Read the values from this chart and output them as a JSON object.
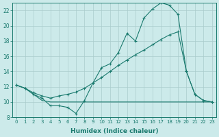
{
  "xlabel": "Humidex (Indice chaleur)",
  "background_color": "#cceaea",
  "line_color": "#1a7a6e",
  "grid_color": "#aacccc",
  "xlim": [
    -0.5,
    23.5
  ],
  "ylim": [
    8,
    23
  ],
  "yticks": [
    8,
    10,
    12,
    14,
    16,
    18,
    20,
    22
  ],
  "xticks": [
    0,
    1,
    2,
    3,
    4,
    5,
    6,
    7,
    8,
    9,
    10,
    11,
    12,
    13,
    14,
    15,
    16,
    17,
    18,
    19,
    20,
    21,
    22,
    23
  ],
  "line1_x": [
    0,
    1,
    2,
    3,
    4,
    5,
    6,
    7,
    8,
    9,
    10,
    11,
    12,
    13,
    14,
    15,
    16,
    17,
    18,
    19,
    20,
    21,
    22,
    23
  ],
  "line1_y": [
    12.2,
    11.8,
    11.0,
    10.5,
    9.5,
    9.5,
    9.3,
    8.5,
    10.2,
    12.5,
    14.5,
    15.0,
    16.5,
    19.0,
    18.0,
    21.0,
    22.2,
    23.0,
    22.7,
    21.5,
    14.0,
    11.0,
    10.2,
    10.0
  ],
  "line2_x": [
    0,
    1,
    2,
    3,
    4,
    5,
    6,
    7,
    8,
    9,
    10,
    11,
    12,
    13,
    14,
    15,
    16,
    17,
    18,
    19,
    20,
    21,
    22,
    23
  ],
  "line2_y": [
    12.2,
    11.8,
    11.0,
    10.2,
    10.0,
    10.0,
    10.0,
    10.0,
    10.0,
    10.0,
    10.0,
    10.0,
    10.0,
    10.0,
    10.0,
    10.0,
    10.0,
    10.0,
    10.0,
    10.0,
    10.0,
    10.0,
    10.0,
    10.0
  ],
  "line3_x": [
    0,
    1,
    2,
    3,
    4,
    5,
    6,
    7,
    8,
    9,
    10,
    11,
    12,
    13,
    14,
    15,
    16,
    17,
    18,
    19,
    20,
    21,
    22,
    23
  ],
  "line3_y": [
    12.2,
    11.8,
    11.2,
    10.8,
    10.5,
    10.8,
    11.0,
    11.3,
    11.8,
    12.5,
    13.2,
    14.0,
    14.8,
    15.5,
    16.2,
    16.8,
    17.5,
    18.2,
    18.8,
    19.2,
    14.0,
    11.0,
    10.2,
    10.0
  ]
}
